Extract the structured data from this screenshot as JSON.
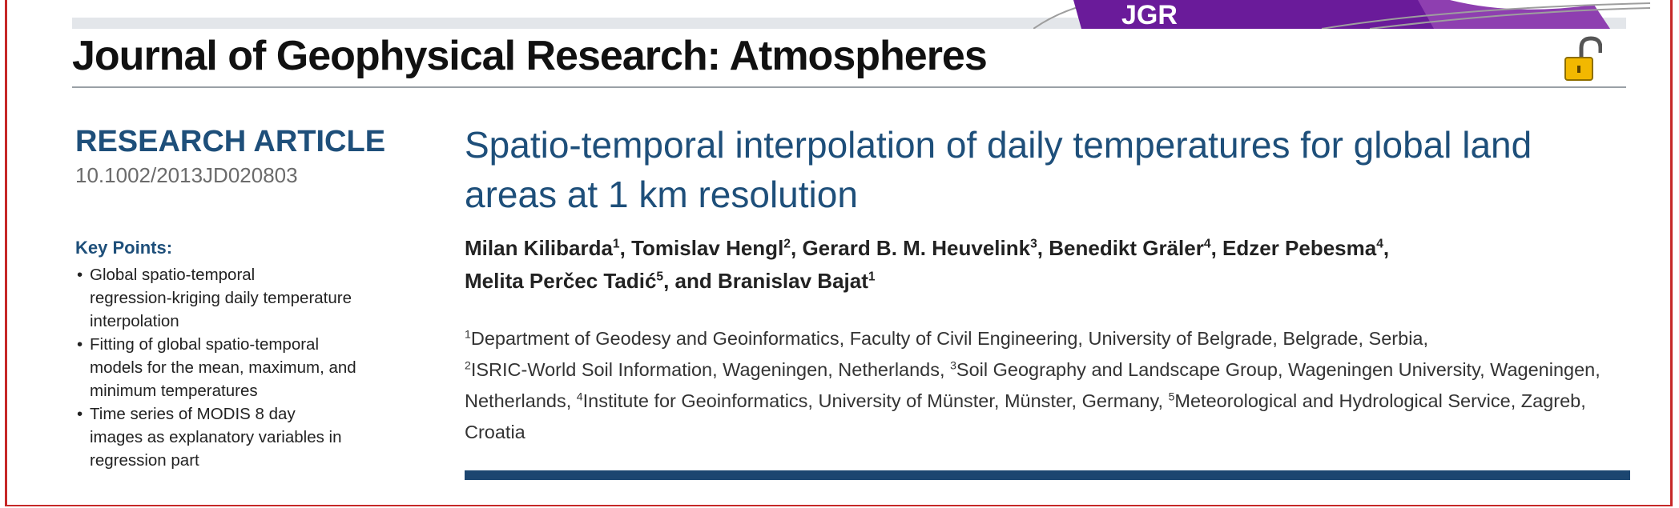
{
  "header": {
    "journal_title": "Journal of Geophysical Research: Atmospheres",
    "logo_text": "JGR",
    "open_access_icon": "unlocked-padlock-icon"
  },
  "sidebar": {
    "article_type": "RESEARCH ARTICLE",
    "doi": "10.1002/2013JD020803",
    "key_points_heading": "Key Points:",
    "key_points": [
      [
        "Global spatio-temporal",
        "regression-kriging daily temperature",
        "interpolation"
      ],
      [
        "Fitting of global spatio-temporal",
        "models for the mean, maximum, and",
        "minimum temperatures"
      ],
      [
        "Time series of MODIS 8 day",
        "images as explanatory variables in",
        "regression part"
      ]
    ]
  },
  "article": {
    "title": "Spatio-temporal interpolation of daily temperatures for global land areas at 1 km resolution",
    "authors": [
      {
        "name": "Milan Kilibarda",
        "aff": "1"
      },
      {
        "name": "Tomislav Hengl",
        "aff": "2"
      },
      {
        "name": "Gerard B. M. Heuvelink",
        "aff": "3"
      },
      {
        "name": "Benedikt Gräler",
        "aff": "4"
      },
      {
        "name": "Edzer Pebesma",
        "aff": "4"
      },
      {
        "name": "Melita Perčec Tadić",
        "aff": "5"
      },
      {
        "name": "Branislav Bajat",
        "aff": "1"
      }
    ],
    "affiliations": [
      {
        "num": "1",
        "text": "Department of Geodesy and Geoinformatics, Faculty of Civil Engineering, University of Belgrade, Belgrade, Serbia,"
      },
      {
        "num": "2",
        "text": "ISRIC-World Soil Information,  Wageningen, Netherlands,"
      },
      {
        "num": "3",
        "text": "Soil Geography and Landscape Group, Wageningen University, Wageningen, Netherlands,"
      },
      {
        "num": "4",
        "text": "Institute for Geoinformatics, University of Münster, Münster, Germany,"
      },
      {
        "num": "5",
        "text": "Meteorological and Hydrological Service, Zagreb, Croatia"
      }
    ]
  },
  "colors": {
    "accent_blue": "#1e4f7a",
    "rule_blue": "#1c4670",
    "frame_red": "#c62828",
    "logo_purple": "#6a1b9a",
    "lock_gold": "#f2b800"
  }
}
